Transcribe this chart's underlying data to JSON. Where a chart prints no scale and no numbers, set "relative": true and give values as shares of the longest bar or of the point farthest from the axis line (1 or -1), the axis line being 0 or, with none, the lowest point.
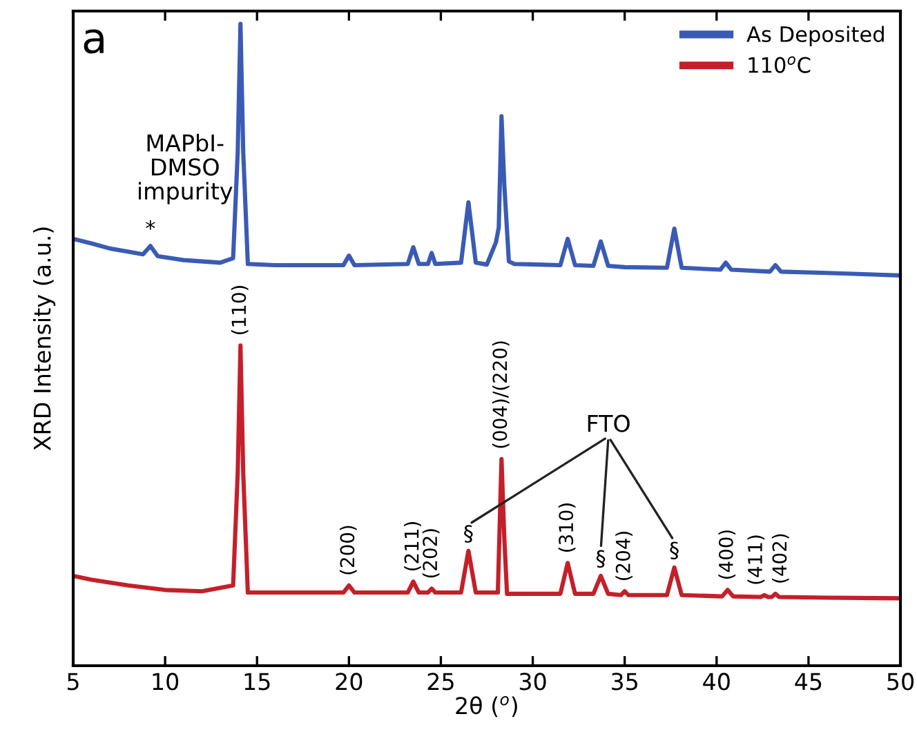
{
  "chart_data": {
    "type": "line",
    "relative": true,
    "xlabel": "2θ ($^{o}$)",
    "ylabel": "XRD Intensity (a.u.)",
    "xlim": [
      5,
      50
    ],
    "xticks": [
      5,
      10,
      15,
      20,
      25,
      30,
      35,
      40,
      45,
      50
    ],
    "tick_labels": "x",
    "legend": "top right",
    "grid": false,
    "series": [
      {
        "name": "As Deposited",
        "color": "#3a5bb5",
        "x": [
          5,
          6,
          7,
          8,
          8.8,
          9.2,
          9.6,
          11,
          13,
          13.7,
          13.95,
          14.1,
          14.25,
          14.5,
          16,
          19.7,
          20,
          20.3,
          23.2,
          23.5,
          23.8,
          24.3,
          24.5,
          24.7,
          26.1,
          26.5,
          26.9,
          27.5,
          28.0,
          28.15,
          28.3,
          28.45,
          28.7,
          29,
          31.5,
          31.9,
          32.3,
          33.3,
          33.7,
          34.1,
          35,
          37.3,
          37.7,
          38.1,
          40.2,
          40.5,
          40.8,
          42.9,
          43.2,
          43.5,
          46,
          50
        ],
        "values": [
          0.665,
          0.658,
          0.65,
          0.645,
          0.641,
          0.654,
          0.638,
          0.632,
          0.628,
          0.635,
          0.8,
          1.0,
          0.8,
          0.626,
          0.624,
          0.624,
          0.639,
          0.624,
          0.626,
          0.652,
          0.626,
          0.626,
          0.643,
          0.626,
          0.628,
          0.722,
          0.628,
          0.625,
          0.66,
          0.683,
          0.856,
          0.75,
          0.63,
          0.626,
          0.624,
          0.665,
          0.624,
          0.623,
          0.661,
          0.623,
          0.621,
          0.62,
          0.681,
          0.62,
          0.617,
          0.628,
          0.617,
          0.614,
          0.624,
          0.614,
          0.612,
          0.608
        ]
      },
      {
        "name": "110$^{o}$C",
        "color": "#c4202a",
        "x": [
          5,
          6,
          8,
          10,
          12,
          13.7,
          13.95,
          14.1,
          14.25,
          14.5,
          16,
          19.7,
          20,
          20.3,
          23.2,
          23.5,
          23.8,
          24.3,
          24.5,
          24.7,
          26.1,
          26.5,
          26.9,
          28.1,
          28.3,
          28.45,
          28.6,
          31.5,
          31.9,
          32.3,
          33.3,
          33.7,
          34.1,
          34.8,
          35,
          35.2,
          37.3,
          37.7,
          38.1,
          40.3,
          40.6,
          40.9,
          42.4,
          42.6,
          42.8,
          43.0,
          43.2,
          43.4,
          46,
          50
        ],
        "values": [
          0.14,
          0.134,
          0.125,
          0.118,
          0.116,
          0.125,
          0.3,
          0.499,
          0.3,
          0.114,
          0.114,
          0.114,
          0.125,
          0.114,
          0.114,
          0.131,
          0.114,
          0.114,
          0.12,
          0.114,
          0.114,
          0.179,
          0.114,
          0.114,
          0.322,
          0.2,
          0.112,
          0.112,
          0.16,
          0.112,
          0.112,
          0.14,
          0.112,
          0.11,
          0.116,
          0.11,
          0.11,
          0.153,
          0.11,
          0.108,
          0.118,
          0.108,
          0.107,
          0.11,
          0.107,
          0.107,
          0.112,
          0.107,
          0.106,
          0.105
        ]
      }
    ],
    "annotations": [
      "a",
      "MAPbI-\nDMSO\nimpurity",
      "FTO",
      {
        "text": "*",
        "x": 9.2,
        "y": 0.654
      },
      {
        "text": "(110)",
        "x": 14.1,
        "y": 0.499
      },
      {
        "text": "(200)",
        "x": 20,
        "y": 0.125
      },
      {
        "text": "(211)",
        "x": 23.5,
        "y": 0.131
      },
      {
        "text": "(202)",
        "x": 24.5,
        "y": 0.12
      },
      {
        "text": "(004)/(220)",
        "x": 28.3,
        "y": 0.322
      },
      {
        "text": "(310)",
        "x": 31.9,
        "y": 0.16
      },
      {
        "text": "(204)",
        "x": 35,
        "y": 0.116
      },
      {
        "text": "(400)",
        "x": 40.6,
        "y": 0.118
      },
      {
        "text": "(411)",
        "x": 42.6,
        "y": 0.11
      },
      {
        "text": "(402)",
        "x": 43.2,
        "y": 0.112
      },
      {
        "text": "§",
        "x": 26.5,
        "y": 0.179
      },
      {
        "text": "§",
        "x": 33.7,
        "y": 0.14
      },
      {
        "text": "§",
        "x": 37.7,
        "y": 0.153
      }
    ]
  }
}
